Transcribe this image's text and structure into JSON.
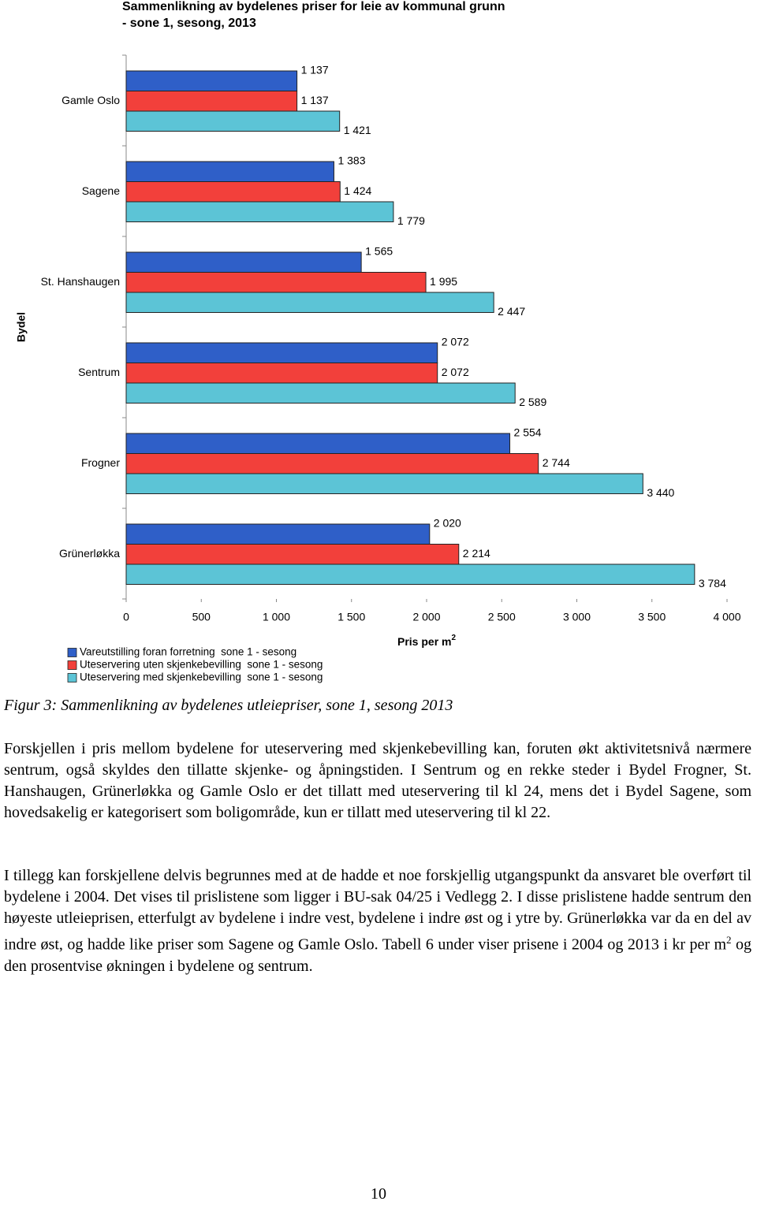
{
  "chart_data": {
    "type": "hbar",
    "title": [
      "Sammenlikning av bydelenes priser for leie av kommunal grunn",
      "- sone 1, sesong, 2013"
    ],
    "ylabel": "Bydel",
    "xlabel": "Pris per m",
    "xlabel_sup": "2",
    "categories": [
      "Gamle Oslo",
      "Sagene",
      "St. Hanshaugen",
      "Sentrum",
      "Frogner",
      "Grünerløkka"
    ],
    "series": [
      {
        "name": "Vareutstilling foran forretning  sone 1 - sesong",
        "color": "#2f5fc8",
        "values": [
          1137,
          1383,
          1565,
          2072,
          2554,
          2020
        ],
        "value_labels": [
          "1 137",
          "1 383",
          "1 565",
          "2 072",
          "2 554",
          "2 020"
        ]
      },
      {
        "name": "Uteservering uten skjenkebevilling  sone 1 - sesong",
        "color": "#f2403b",
        "values": [
          1137,
          1424,
          1995,
          2072,
          2744,
          2214
        ],
        "value_labels": [
          "1 137",
          "1 424",
          "1 995",
          "2 072",
          "2 744",
          "2 214"
        ]
      },
      {
        "name": "Uteservering med skjenkebevilling  sone 1 - sesong",
        "color": "#5cc4d6",
        "values": [
          1421,
          1779,
          2447,
          2589,
          3440,
          3784
        ],
        "value_labels": [
          "1 421",
          "1 779",
          "2 447",
          "2 589",
          "3 440",
          "3 784"
        ]
      }
    ],
    "xlim": [
      0,
      4000
    ],
    "xticks": [
      0,
      500,
      {
        "value": 1000,
        "label": "1 000"
      },
      {
        "value": 1500,
        "label": "1 500"
      },
      {
        "value": 2000,
        "label": "2 000"
      },
      {
        "value": 2500,
        "label": "2 500"
      },
      {
        "value": 3000,
        "label": "3 000"
      },
      {
        "value": 3500,
        "label": "3 500"
      },
      {
        "value": 4000,
        "label": "4 000"
      }
    ],
    "grid": false,
    "legend": "bottom-left"
  },
  "caption": "Figur 3: Sammenlikning av bydelenes utleiepriser, sone 1, sesong 2013",
  "paragraph1": "Forskjellen i pris mellom bydelene for uteservering med skjenkebevilling kan, foruten økt aktivitetsnivå nærmere sentrum, også skyldes den tillatte skjenke- og åpningstiden. I Sentrum og en rekke steder i Bydel Frogner, St. Hanshaugen, Grünerløkka og Gamle Oslo er det tillatt med uteservering til kl 24, mens det i Bydel Sagene, som hovedsakelig er kategorisert som boligområde, kun er tillatt med uteservering til kl 22.",
  "paragraph2": [
    "I tillegg kan forskjellene delvis begrunnes med at de hadde et noe forskjellig utgangspunkt da ansvaret ble overført til bydelene i 2004. Det vises til prislistene som ligger i BU-sak 04/25 i Vedlegg 2. I disse prislistene hadde sentrum den høyeste utleieprisen, etterfulgt av bydelene i indre vest, bydelene i indre øst og i ytre by. Grünerløkka var da en del av indre øst, og hadde like priser som Sagene og Gamle Oslo. Tabell 6 under viser prisene i 2004 og 2013 i kr per m",
    "2",
    " og den prosentvise økningen i bydelene og sentrum."
  ],
  "page_number": "10"
}
